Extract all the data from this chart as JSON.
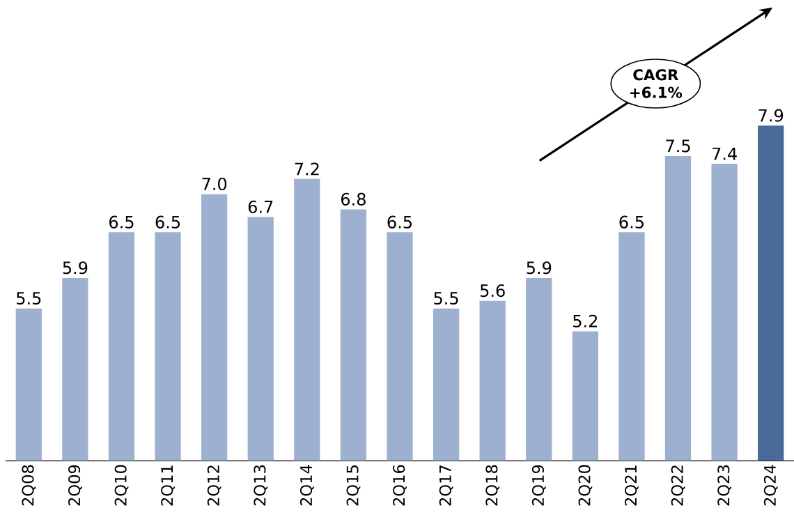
{
  "chart_data": {
    "type": "bar",
    "categories": [
      "2Q08",
      "2Q09",
      "2Q10",
      "2Q11",
      "2Q12",
      "2Q13",
      "2Q14",
      "2Q15",
      "2Q16",
      "2Q17",
      "2Q18",
      "2Q19",
      "2Q20",
      "2Q21",
      "2Q22",
      "2Q23",
      "2Q24"
    ],
    "values": [
      5.5,
      5.9,
      6.5,
      6.5,
      7.0,
      6.7,
      7.2,
      6.8,
      6.5,
      5.5,
      5.6,
      5.9,
      5.2,
      6.5,
      7.5,
      7.4,
      7.9
    ],
    "value_labels": [
      "5.5",
      "5.9",
      "6.5",
      "6.5",
      "7.0",
      "6.7",
      "7.2",
      "6.8",
      "6.5",
      "5.5",
      "5.6",
      "5.9",
      "5.2",
      "6.5",
      "7.5",
      "7.4",
      "7.9"
    ],
    "colors": [
      "#9eb0cf",
      "#9eb0cf",
      "#9eb0cf",
      "#9eb0cf",
      "#9eb0cf",
      "#9eb0cf",
      "#9eb0cf",
      "#9eb0cf",
      "#9eb0cf",
      "#9eb0cf",
      "#9eb0cf",
      "#9eb0cf",
      "#9eb0cf",
      "#9eb0cf",
      "#9eb0cf",
      "#9eb0cf",
      "#4a6a9a"
    ],
    "ylim": [
      3.5,
      7.9
    ],
    "annotations": [
      "CAGR +6.1%"
    ]
  }
}
